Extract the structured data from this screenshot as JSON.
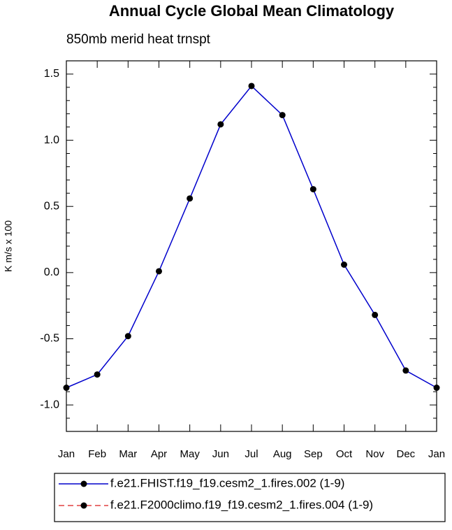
{
  "chart_data": {
    "type": "line",
    "title": "Annual Cycle Global Mean Climatology",
    "subtitle": "850mb merid heat trnspt",
    "y_label": "K m/s x 100",
    "categories": [
      "Jan",
      "Feb",
      "Mar",
      "Apr",
      "May",
      "Jun",
      "Jul",
      "Aug",
      "Sep",
      "Oct",
      "Nov",
      "Dec",
      "Jan"
    ],
    "series": [
      {
        "name": "f.e21.FHIST.f19_f19.cesm2_1.fires.002 (1-9)",
        "color": "#0000cc",
        "dash": false,
        "values": [
          -0.87,
          -0.77,
          -0.48,
          0.01,
          0.56,
          1.12,
          1.41,
          1.19,
          0.63,
          0.06,
          -0.32,
          -0.74,
          -0.87
        ]
      },
      {
        "name": "f.e21.F2000climo.f19_f19.cesm2_1.fires.004 (1-9)",
        "color": "#e04040",
        "dash": true,
        "values": [
          null,
          null,
          null,
          null,
          null,
          null,
          null,
          null,
          null,
          null,
          null,
          null,
          null
        ]
      }
    ],
    "ylim": [
      -1.2,
      1.6
    ],
    "yticks": [
      {
        "value": -1,
        "label": "-1.0"
      },
      -0.5,
      {
        "value": 0,
        "label": "0.0"
      },
      0.5,
      {
        "value": 1,
        "label": "1.0"
      },
      1.5
    ],
    "yminorticks": [
      -1.1,
      -0.9,
      -0.8,
      -0.7,
      -0.6,
      -0.4,
      -0.3,
      -0.2,
      -0.1,
      0.1,
      0.2,
      0.3,
      0.4,
      0.6,
      0.7,
      0.8,
      0.9,
      1.1,
      1.2,
      1.3,
      1.4,
      1.6
    ]
  }
}
